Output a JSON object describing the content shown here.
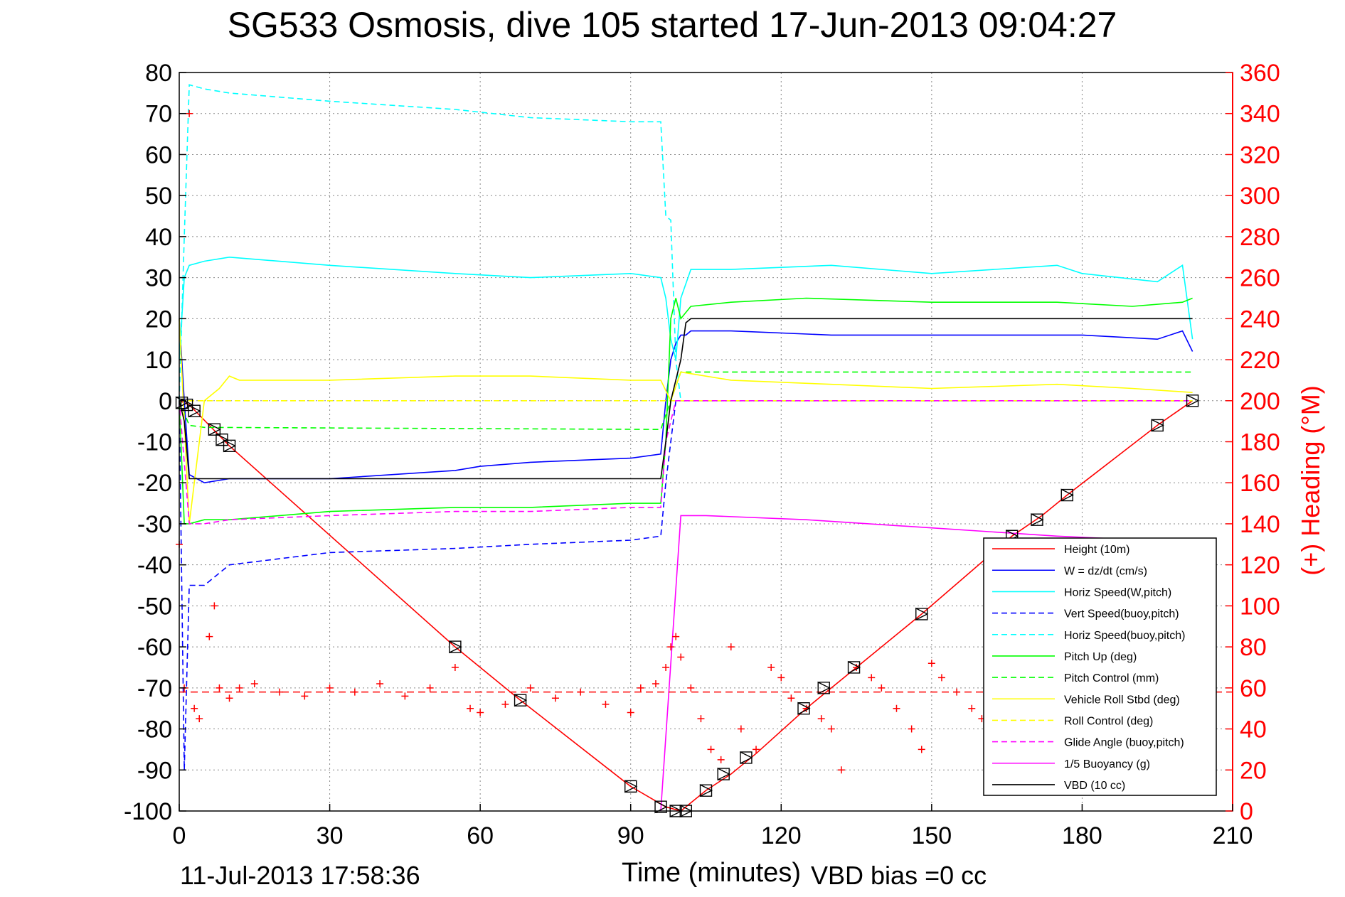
{
  "chart_data": {
    "type": "line",
    "title": "SG533 Osmosis, dive 105 started 17-Jun-2013 09:04:27",
    "xlabel": "Time (minutes)",
    "ylabel_right": "(+) Heading (°M)",
    "footer_left": "11-Jul-2013 17:58:36",
    "footer_right": "VBD bias =0 cc",
    "xlim": [
      0,
      210
    ],
    "ylim_left": [
      -100,
      80
    ],
    "ylim_right": [
      0,
      360
    ],
    "x_ticks": [
      0,
      30,
      60,
      90,
      120,
      150,
      180,
      210
    ],
    "y_ticks_left": [
      80,
      70,
      60,
      50,
      40,
      30,
      20,
      10,
      0,
      -10,
      -20,
      -30,
      -40,
      -50,
      -60,
      -70,
      -80,
      -90,
      -100
    ],
    "y_ticks_right": [
      360,
      340,
      320,
      300,
      280,
      260,
      240,
      220,
      200,
      180,
      160,
      140,
      120,
      100,
      80,
      60,
      40,
      20,
      0
    ],
    "grid": true,
    "legend_position": "bottom-right",
    "colors": {
      "right_axis": "#ff0000",
      "axes": "#000000",
      "grid": "#808080"
    },
    "series": [
      {
        "name": "Height (10m)",
        "color": "#ff0000",
        "style": "solid",
        "x": [
          0,
          2,
          10,
          55,
          68,
          90,
          97,
          100,
          105,
          110,
          115,
          125,
          135,
          148,
          166,
          172,
          177,
          195,
          202
        ],
        "y": [
          0,
          -1,
          -11,
          -60,
          -73,
          -94,
          -99,
          -100,
          -95,
          -91,
          -86,
          -75,
          -65,
          -52,
          -33,
          -28,
          -23,
          -6,
          0
        ]
      },
      {
        "name": "W = dz/dt (cm/s)",
        "color": "#0000ff",
        "style": "solid",
        "x": [
          0,
          1,
          2,
          5,
          10,
          30,
          55,
          60,
          70,
          90,
          96,
          97,
          98,
          99,
          100,
          101,
          102,
          110,
          130,
          150,
          175,
          180,
          195,
          200,
          202
        ],
        "y": [
          20,
          0,
          -18,
          -20,
          -19,
          -19,
          -17,
          -16,
          -15,
          -14,
          -13,
          0,
          10,
          14,
          16,
          16,
          17,
          17,
          16,
          16,
          16,
          16,
          15,
          17,
          12
        ]
      },
      {
        "name": "Horiz Speed(W,pitch)",
        "color": "#00ffff",
        "style": "solid",
        "x": [
          0,
          1,
          2,
          5,
          10,
          30,
          55,
          70,
          90,
          96,
          97,
          98,
          99,
          100,
          102,
          110,
          130,
          150,
          175,
          180,
          195,
          200,
          202
        ],
        "y": [
          10,
          30,
          33,
          34,
          35,
          33,
          31,
          30,
          31,
          30,
          25,
          15,
          10,
          25,
          32,
          32,
          33,
          31,
          33,
          31,
          29,
          33,
          15
        ]
      },
      {
        "name": "Vert Speed(buoy,pitch)",
        "color": "#0000ff",
        "style": "dashed",
        "x": [
          0,
          1,
          2,
          5,
          10,
          30,
          55,
          70,
          90,
          96,
          97,
          98,
          99,
          100,
          202
        ],
        "y": [
          0,
          -90,
          -45,
          -45,
          -40,
          -37,
          -36,
          -35,
          -34,
          -33,
          -20,
          -10,
          0,
          0,
          0
        ]
      },
      {
        "name": "Horiz Speed(buoy,pitch)",
        "color": "#00ffff",
        "style": "dashed",
        "x": [
          0,
          1,
          2,
          5,
          10,
          30,
          55,
          70,
          90,
          96,
          97,
          98,
          99,
          100,
          202
        ],
        "y": [
          0,
          40,
          77,
          76,
          75,
          73,
          71,
          69,
          68,
          68,
          45,
          44,
          10,
          0,
          0
        ]
      },
      {
        "name": "Pitch Up (deg)",
        "color": "#00ff00",
        "style": "solid",
        "x": [
          0,
          1,
          2,
          5,
          10,
          30,
          55,
          70,
          90,
          96,
          97,
          98,
          99,
          100,
          102,
          110,
          125,
          150,
          175,
          190,
          200,
          202
        ],
        "y": [
          0,
          -30,
          -30,
          -29,
          -29,
          -27,
          -26,
          -26,
          -25,
          -25,
          -10,
          20,
          25,
          20,
          23,
          24,
          25,
          24,
          24,
          23,
          24,
          25
        ]
      },
      {
        "name": "Pitch Control (mm)",
        "color": "#00ff00",
        "style": "dashed",
        "x": [
          0,
          2,
          5,
          96,
          98,
          100,
          202
        ],
        "y": [
          0,
          -6,
          -6.5,
          -7,
          0,
          7,
          7
        ]
      },
      {
        "name": "Vehicle Roll Stbd (deg)",
        "color": "#ffff00",
        "style": "solid",
        "x": [
          0,
          2,
          5,
          8,
          10,
          12,
          30,
          55,
          70,
          90,
          96,
          98,
          100,
          110,
          130,
          150,
          175,
          190,
          202
        ],
        "y": [
          20,
          -30,
          0,
          3,
          6,
          5,
          5,
          6,
          6,
          5,
          5,
          0,
          7,
          5,
          4,
          3,
          4,
          3,
          2
        ]
      },
      {
        "name": "Roll Control (deg)",
        "color": "#ffff00",
        "style": "dashed",
        "x": [
          0,
          202
        ],
        "y": [
          0,
          0
        ]
      },
      {
        "name": "Glide Angle (buoy,pitch)",
        "color": "#ff00ff",
        "style": "dashed",
        "x": [
          0,
          2,
          5,
          10,
          30,
          55,
          70,
          90,
          96,
          97,
          98,
          99,
          100,
          202
        ],
        "y": [
          0,
          -30,
          -30,
          -29,
          -28,
          -27,
          -27,
          -26,
          -26,
          -10,
          -5,
          0,
          0,
          0
        ]
      },
      {
        "name": "1/5 Buoyancy (g)",
        "color": "#ff00ff",
        "style": "solid",
        "x": [
          96,
          100,
          105,
          125,
          150,
          175,
          193
        ],
        "y": [
          -100,
          -28,
          -28,
          -29,
          -31,
          -33,
          -34
        ]
      },
      {
        "name": "VBD (10 cc)",
        "color": "#000000",
        "style": "solid",
        "x": [
          0,
          1,
          2,
          5,
          96,
          97,
          98,
          100,
          101,
          102,
          120,
          202
        ],
        "y": [
          0,
          -5,
          -19,
          -19,
          -19,
          -10,
          0,
          10,
          19,
          20,
          20,
          20
        ]
      }
    ],
    "heading_series": {
      "name": "Heading",
      "color": "#ff0000",
      "axis": "right",
      "target_deg": 58,
      "x": [
        0,
        1,
        2,
        3,
        4,
        6,
        7,
        8,
        10,
        12,
        15,
        20,
        25,
        30,
        35,
        40,
        45,
        50,
        55,
        58,
        60,
        65,
        70,
        75,
        80,
        85,
        90,
        92,
        95,
        97,
        98,
        99,
        100,
        102,
        104,
        106,
        108,
        110,
        112,
        115,
        118,
        120,
        122,
        125,
        128,
        130,
        132,
        135,
        138,
        140,
        143,
        146,
        148,
        150,
        152,
        155,
        158,
        160,
        163,
        166
      ],
      "y": [
        130,
        60,
        340,
        50,
        45,
        85,
        100,
        60,
        55,
        60,
        62,
        58,
        56,
        60,
        58,
        62,
        56,
        60,
        70,
        50,
        48,
        52,
        60,
        55,
        58,
        52,
        48,
        60,
        62,
        70,
        80,
        85,
        75,
        60,
        45,
        30,
        25,
        80,
        40,
        30,
        70,
        65,
        55,
        50,
        45,
        40,
        20,
        70,
        65,
        60,
        50,
        40,
        30,
        72,
        65,
        58,
        50,
        45,
        40,
        35
      ]
    },
    "markers": {
      "symbol": "triangle-in-square",
      "color": "#000000",
      "x": [
        0.5,
        1.5,
        3,
        7,
        8.5,
        10,
        55,
        68,
        90,
        96,
        99,
        101,
        105,
        108.5,
        113,
        124.5,
        128.5,
        134.5,
        148,
        166,
        171,
        177,
        195,
        202
      ],
      "y": [
        -0.5,
        -1,
        -2.5,
        -7,
        -9.5,
        -11,
        -60,
        -73,
        -94,
        -99,
        -100,
        -100,
        -95,
        -91,
        -87,
        -75,
        -70,
        -65,
        -52,
        -33,
        -29,
        -23,
        -6,
        0
      ]
    }
  }
}
